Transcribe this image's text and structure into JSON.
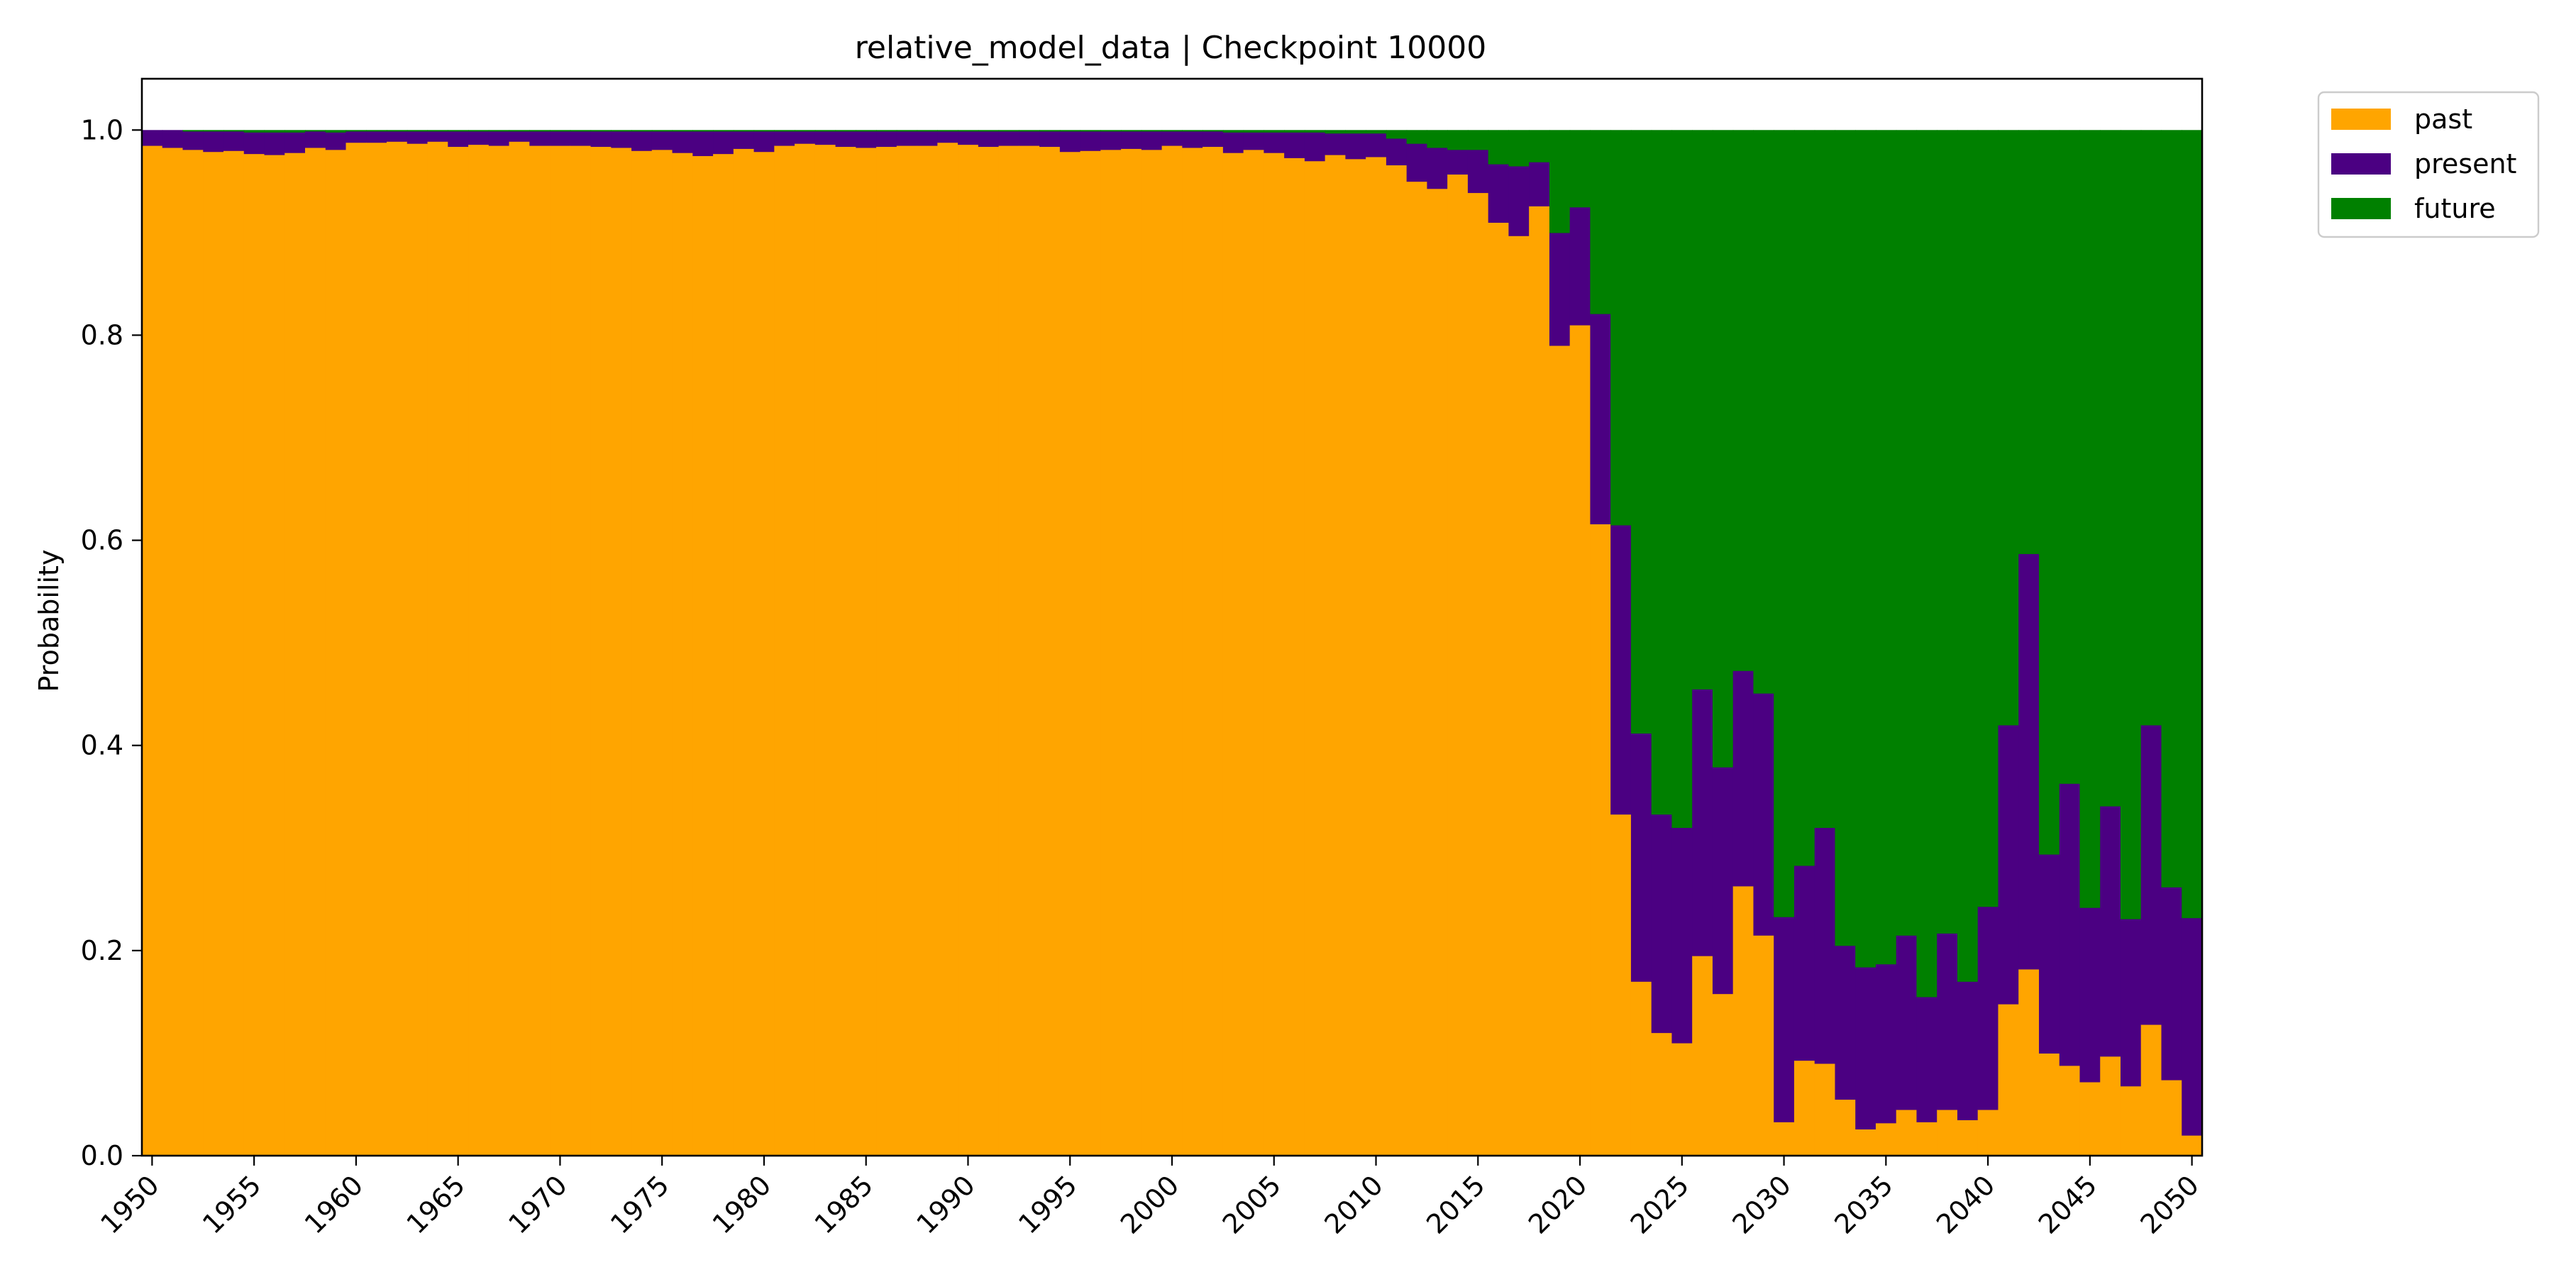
{
  "chart_data": {
    "type": "area",
    "stacked": true,
    "step": true,
    "title": "relative_model_data | Checkpoint 10000",
    "xlabel": "",
    "ylabel": "Probability",
    "xlim": [
      1949.5,
      2050.5
    ],
    "ylim": [
      0,
      1.05
    ],
    "xticks": [
      1950,
      1955,
      1960,
      1965,
      1970,
      1975,
      1980,
      1985,
      1990,
      1995,
      2000,
      2005,
      2010,
      2015,
      2020,
      2025,
      2030,
      2035,
      2040,
      2045,
      2050
    ],
    "yticks": [
      0.0,
      0.2,
      0.4,
      0.6,
      0.8,
      1.0
    ],
    "ytick_labels": [
      "0.0",
      "0.2",
      "0.4",
      "0.6",
      "0.8",
      "1.0"
    ],
    "grid": false,
    "legend": "outside-top-right",
    "x": [
      1950,
      1951,
      1952,
      1953,
      1954,
      1955,
      1956,
      1957,
      1958,
      1959,
      1960,
      1961,
      1962,
      1963,
      1964,
      1965,
      1966,
      1967,
      1968,
      1969,
      1970,
      1971,
      1972,
      1973,
      1974,
      1975,
      1976,
      1977,
      1978,
      1979,
      1980,
      1981,
      1982,
      1983,
      1984,
      1985,
      1986,
      1987,
      1988,
      1989,
      1990,
      1991,
      1992,
      1993,
      1994,
      1995,
      1996,
      1997,
      1998,
      1999,
      2000,
      2001,
      2002,
      2003,
      2004,
      2005,
      2006,
      2007,
      2008,
      2009,
      2010,
      2011,
      2012,
      2013,
      2014,
      2015,
      2016,
      2017,
      2018,
      2019,
      2020,
      2021,
      2022,
      2023,
      2024,
      2025,
      2026,
      2027,
      2028,
      2029,
      2030,
      2031,
      2032,
      2033,
      2034,
      2035,
      2036,
      2037,
      2038,
      2039,
      2040,
      2041,
      2042,
      2043,
      2044,
      2045,
      2046,
      2047,
      2048,
      2049,
      2050
    ],
    "series": [
      {
        "name": "past",
        "color": "#FFA500",
        "values": [
          0.985,
          0.983,
          0.981,
          0.979,
          0.98,
          0.977,
          0.976,
          0.978,
          0.983,
          0.981,
          0.988,
          0.988,
          0.989,
          0.987,
          0.989,
          0.984,
          0.986,
          0.985,
          0.989,
          0.985,
          0.985,
          0.985,
          0.984,
          0.983,
          0.98,
          0.981,
          0.978,
          0.975,
          0.977,
          0.982,
          0.979,
          0.985,
          0.987,
          0.986,
          0.984,
          0.983,
          0.984,
          0.985,
          0.985,
          0.988,
          0.986,
          0.984,
          0.985,
          0.985,
          0.984,
          0.979,
          0.98,
          0.981,
          0.982,
          0.981,
          0.985,
          0.983,
          0.984,
          0.978,
          0.981,
          0.978,
          0.973,
          0.97,
          0.976,
          0.972,
          0.974,
          0.966,
          0.95,
          0.943,
          0.957,
          0.939,
          0.91,
          0.897,
          0.926,
          0.79,
          0.81,
          0.616,
          0.333,
          0.17,
          0.12,
          0.11,
          0.195,
          0.158,
          0.263,
          0.215,
          0.033,
          0.093,
          0.09,
          0.055,
          0.026,
          0.032,
          0.045,
          0.033,
          0.045,
          0.035,
          0.045,
          0.148,
          0.182,
          0.1,
          0.088,
          0.072,
          0.097,
          0.068,
          0.128,
          0.074,
          0.02
        ]
      },
      {
        "name": "present",
        "color": "#4B0082",
        "values": [
          0.015,
          0.017,
          0.018,
          0.02,
          0.019,
          0.021,
          0.022,
          0.02,
          0.016,
          0.017,
          0.011,
          0.011,
          0.01,
          0.012,
          0.01,
          0.015,
          0.013,
          0.014,
          0.01,
          0.014,
          0.014,
          0.014,
          0.015,
          0.016,
          0.019,
          0.018,
          0.021,
          0.024,
          0.022,
          0.017,
          0.02,
          0.014,
          0.012,
          0.013,
          0.015,
          0.016,
          0.015,
          0.014,
          0.014,
          0.011,
          0.013,
          0.015,
          0.014,
          0.014,
          0.015,
          0.02,
          0.019,
          0.018,
          0.017,
          0.018,
          0.014,
          0.016,
          0.015,
          0.02,
          0.017,
          0.02,
          0.025,
          0.028,
          0.021,
          0.025,
          0.023,
          0.026,
          0.037,
          0.04,
          0.024,
          0.042,
          0.057,
          0.068,
          0.043,
          0.11,
          0.115,
          0.205,
          0.282,
          0.242,
          0.213,
          0.21,
          0.26,
          0.221,
          0.21,
          0.236,
          0.2,
          0.19,
          0.23,
          0.15,
          0.158,
          0.155,
          0.17,
          0.122,
          0.172,
          0.135,
          0.198,
          0.272,
          0.405,
          0.194,
          0.275,
          0.17,
          0.244,
          0.163,
          0.292,
          0.188,
          0.212
        ]
      },
      {
        "name": "future",
        "color": "#008000",
        "values": [
          0.0,
          0.0,
          0.001,
          0.001,
          0.001,
          0.002,
          0.002,
          0.002,
          0.001,
          0.002,
          0.001,
          0.001,
          0.001,
          0.001,
          0.001,
          0.001,
          0.001,
          0.001,
          0.001,
          0.001,
          0.001,
          0.001,
          0.001,
          0.001,
          0.001,
          0.001,
          0.001,
          0.001,
          0.001,
          0.001,
          0.001,
          0.001,
          0.001,
          0.001,
          0.001,
          0.001,
          0.001,
          0.001,
          0.001,
          0.001,
          0.001,
          0.001,
          0.001,
          0.001,
          0.001,
          0.001,
          0.001,
          0.001,
          0.001,
          0.001,
          0.001,
          0.001,
          0.001,
          0.002,
          0.002,
          0.002,
          0.002,
          0.002,
          0.003,
          0.003,
          0.003,
          0.008,
          0.013,
          0.017,
          0.019,
          0.019,
          0.033,
          0.035,
          0.031,
          0.1,
          0.075,
          0.179,
          0.385,
          0.588,
          0.667,
          0.68,
          0.545,
          0.621,
          0.527,
          0.549,
          0.767,
          0.717,
          0.68,
          0.795,
          0.816,
          0.813,
          0.785,
          0.845,
          0.783,
          0.83,
          0.757,
          0.58,
          0.413,
          0.706,
          0.637,
          0.758,
          0.659,
          0.769,
          0.58,
          0.738,
          0.768
        ]
      }
    ]
  }
}
